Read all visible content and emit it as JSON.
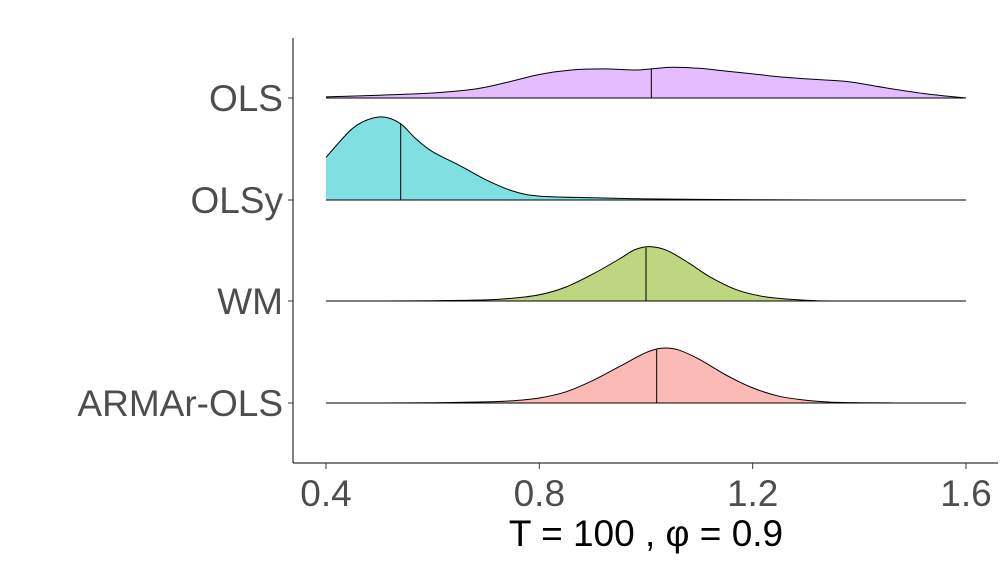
{
  "chart_data": {
    "type": "ridgeline",
    "title": "",
    "xlabel": "T = 100 , φ = 0.9",
    "ylabel": "",
    "xlim": [
      0.4,
      1.6
    ],
    "x_ticks": [
      0.4,
      0.8,
      1.2,
      1.6
    ],
    "x_tick_labels": [
      "0.4",
      "0.8",
      "1.2",
      "1.6"
    ],
    "grid": false,
    "legend": "none",
    "fill_opacity": 0.5,
    "series": [
      {
        "name": "ARMAr-OLS",
        "color": "#F8766D",
        "median": 1.02,
        "density": [
          [
            0.4,
            0.0
          ],
          [
            0.5,
            0.0
          ],
          [
            0.6,
            0.005
          ],
          [
            0.7,
            0.02
          ],
          [
            0.75,
            0.04
          ],
          [
            0.8,
            0.09
          ],
          [
            0.85,
            0.2
          ],
          [
            0.9,
            0.4
          ],
          [
            0.95,
            0.65
          ],
          [
            1.0,
            0.9
          ],
          [
            1.03,
            0.98
          ],
          [
            1.06,
            0.95
          ],
          [
            1.1,
            0.78
          ],
          [
            1.15,
            0.5
          ],
          [
            1.2,
            0.27
          ],
          [
            1.25,
            0.12
          ],
          [
            1.3,
            0.05
          ],
          [
            1.35,
            0.015
          ],
          [
            1.4,
            0.005
          ],
          [
            1.5,
            0.0
          ],
          [
            1.6,
            0.0
          ]
        ]
      },
      {
        "name": "WM",
        "color": "#7CAE00",
        "median": 1.0,
        "density": [
          [
            0.4,
            0.0
          ],
          [
            0.5,
            0.0
          ],
          [
            0.6,
            0.005
          ],
          [
            0.7,
            0.02
          ],
          [
            0.75,
            0.05
          ],
          [
            0.8,
            0.11
          ],
          [
            0.85,
            0.25
          ],
          [
            0.9,
            0.48
          ],
          [
            0.95,
            0.75
          ],
          [
            0.98,
            0.92
          ],
          [
            1.01,
            0.97
          ],
          [
            1.04,
            0.9
          ],
          [
            1.08,
            0.68
          ],
          [
            1.12,
            0.43
          ],
          [
            1.17,
            0.2
          ],
          [
            1.22,
            0.08
          ],
          [
            1.27,
            0.03
          ],
          [
            1.32,
            0.005
          ],
          [
            1.4,
            0.0
          ],
          [
            1.6,
            0.0
          ]
        ]
      },
      {
        "name": "OLSy",
        "color": "#00BFC4",
        "median": 0.54,
        "density": [
          [
            0.4,
            0.76
          ],
          [
            0.42,
            0.98
          ],
          [
            0.45,
            1.28
          ],
          [
            0.48,
            1.44
          ],
          [
            0.51,
            1.48
          ],
          [
            0.54,
            1.36
          ],
          [
            0.57,
            1.08
          ],
          [
            0.6,
            0.86
          ],
          [
            0.65,
            0.62
          ],
          [
            0.7,
            0.36
          ],
          [
            0.75,
            0.16
          ],
          [
            0.8,
            0.07
          ],
          [
            0.9,
            0.04
          ],
          [
            1.0,
            0.02
          ],
          [
            1.1,
            0.01
          ],
          [
            1.2,
            0.005
          ],
          [
            1.4,
            0.0
          ],
          [
            1.6,
            0.0
          ]
        ]
      },
      {
        "name": "OLS",
        "color": "#C77CFF",
        "median": 1.01,
        "density": [
          [
            0.4,
            0.02
          ],
          [
            0.5,
            0.05
          ],
          [
            0.6,
            0.09
          ],
          [
            0.68,
            0.16
          ],
          [
            0.74,
            0.28
          ],
          [
            0.8,
            0.42
          ],
          [
            0.86,
            0.5
          ],
          [
            0.92,
            0.52
          ],
          [
            0.98,
            0.5
          ],
          [
            1.01,
            0.52
          ],
          [
            1.05,
            0.55
          ],
          [
            1.1,
            0.53
          ],
          [
            1.15,
            0.48
          ],
          [
            1.2,
            0.43
          ],
          [
            1.26,
            0.37
          ],
          [
            1.32,
            0.33
          ],
          [
            1.38,
            0.29
          ],
          [
            1.45,
            0.18
          ],
          [
            1.52,
            0.08
          ],
          [
            1.6,
            0.0
          ]
        ]
      }
    ],
    "y_categories": [
      "OLS",
      "OLSy",
      "WM",
      "ARMAr-OLS"
    ]
  }
}
